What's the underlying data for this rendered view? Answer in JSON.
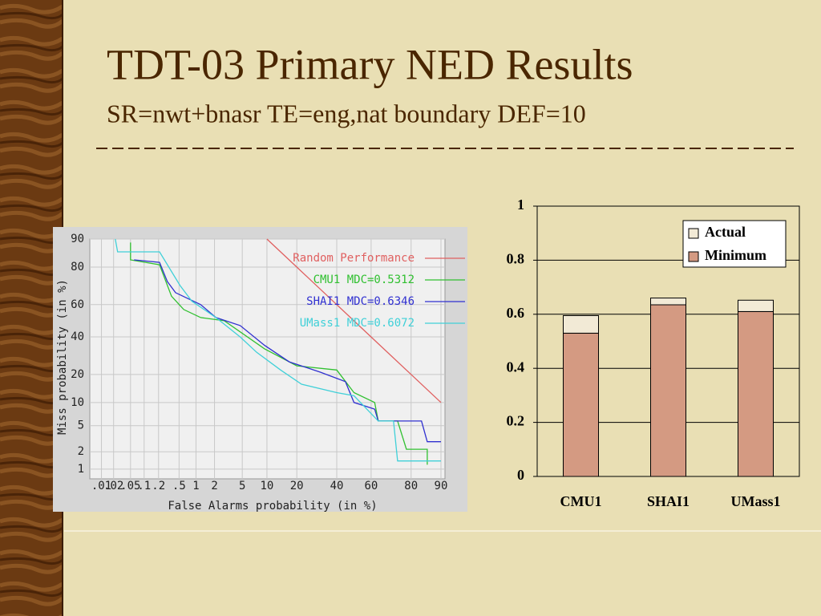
{
  "title": "TDT-03 Primary NED Results",
  "subtitle": "SR=nwt+bnasr TE=eng,nat boundary DEF=10",
  "chart_data": [
    {
      "type": "det",
      "xlabel": "False Alarms probability (in %)",
      "ylabel": "Miss probability (in %)",
      "scale": "probit",
      "xlim": [
        0.005,
        91
      ],
      "ylim": [
        0.66,
        90
      ],
      "xticks": [
        {
          "value": 0.01,
          "label": ".01"
        },
        {
          "value": 0.02,
          "label": ".02"
        },
        {
          "value": 0.05,
          "label": ".05"
        },
        {
          "value": 0.1,
          "label": ".1"
        },
        {
          "value": 0.2,
          "label": ".2"
        },
        {
          "value": 0.5,
          "label": ".5"
        },
        1,
        2,
        5,
        10,
        20,
        40,
        60,
        80,
        90
      ],
      "yticks": [
        1,
        2,
        5,
        10,
        20,
        40,
        60,
        80,
        90
      ],
      "grid": true,
      "series": [
        {
          "name": "Random Performance",
          "color": "#e06060",
          "x": [
            10,
            20,
            40,
            60,
            80,
            90
          ],
          "values": [
            90,
            80,
            60,
            40,
            20,
            10
          ]
        },
        {
          "name": "CMU1 MDC=0.5312",
          "color": "#30c030",
          "x": [
            0.05,
            0.05,
            0.21,
            0.36,
            0.61,
            1.2,
            2.8,
            9.4,
            20,
            40,
            50,
            62,
            64,
            74,
            78,
            86,
            86
          ],
          "values": [
            89,
            83,
            81,
            65,
            57,
            52,
            50,
            33,
            24,
            22,
            13,
            10,
            5.8,
            5.8,
            2.2,
            2.2,
            1.2
          ]
        },
        {
          "name": "SHAI1 MDC=0.6346",
          "color": "#3030d0",
          "x": [
            0.06,
            0.21,
            0.3,
            0.43,
            1.2,
            2.1,
            4.7,
            9.4,
            17,
            31,
            45,
            50,
            62,
            64,
            72,
            84,
            86,
            90
          ],
          "values": [
            83,
            82,
            73,
            67,
            60,
            52,
            47,
            35,
            26,
            21,
            17,
            10,
            8.3,
            5.8,
            5.8,
            5.8,
            2.9,
            2.9
          ]
        },
        {
          "name": "UMass1 MDC=0.6072",
          "color": "#40d0d8",
          "x": [
            0.022,
            0.025,
            0.21,
            0.52,
            0.85,
            2.1,
            4.7,
            7.6,
            14,
            22,
            40,
            50,
            64,
            72,
            74,
            90
          ],
          "values": [
            90,
            86,
            86,
            71,
            62,
            52,
            40,
            31,
            22,
            16,
            13,
            12,
            5.8,
            5.8,
            1.4,
            1.4
          ]
        }
      ]
    },
    {
      "type": "stacked_bar",
      "categories": [
        "CMU1",
        "SHAI1",
        "UMass1"
      ],
      "ylim": [
        0,
        1
      ],
      "yticks": [
        0,
        0.2,
        0.4,
        0.6,
        0.8,
        1
      ],
      "grid": true,
      "legend": "upper right",
      "series": [
        {
          "name": "Actual",
          "color": "#f2ead6",
          "values": [
            0.065,
            0.025,
            0.042
          ]
        },
        {
          "name": "Minimum",
          "color": "#d49a82",
          "values": [
            0.53,
            0.635,
            0.61
          ]
        }
      ]
    }
  ]
}
